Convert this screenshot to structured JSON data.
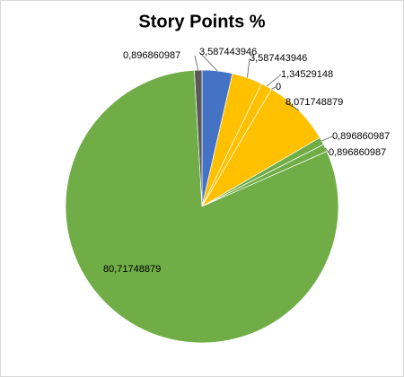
{
  "chart_data": {
    "type": "pie",
    "title": "Story Points %",
    "values": [
      3.587443946,
      3.587443946,
      1.34529148,
      0,
      8.071748879,
      0.896860987,
      0.896860987,
      80.71748879,
      0.896860987
    ],
    "value_labels": [
      "3,587443946",
      "3,587443946",
      "1,34529148",
      "0",
      "8,071748879",
      "0,896860987",
      "0,896860987",
      "80,71748879",
      "0,896860987"
    ],
    "colors": [
      "#4472c4",
      "#ffc000",
      "#ffc000",
      "#ffc000",
      "#ffc000",
      "#70ad47",
      "#70ad47",
      "#70ad47",
      "#595959"
    ]
  }
}
